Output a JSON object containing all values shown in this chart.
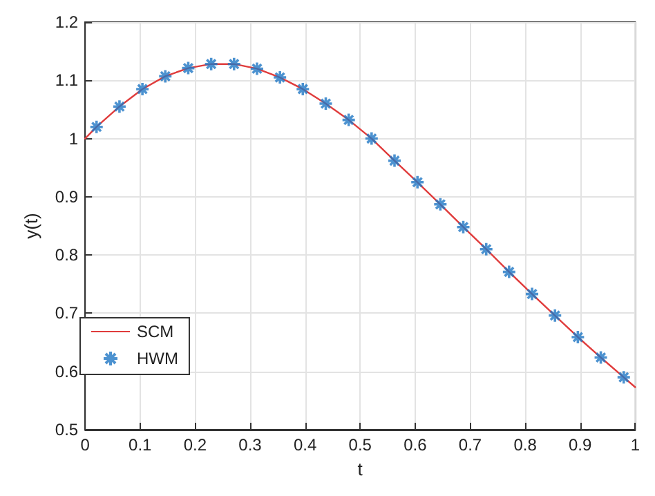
{
  "chart_data": {
    "type": "line",
    "xlabel": "t",
    "ylabel": "y(t)",
    "xlim": [
      0,
      1
    ],
    "xticks": [
      0,
      0.1,
      0.2,
      0.3,
      0.4,
      0.5,
      0.6,
      0.7,
      0.8,
      0.9,
      1
    ],
    "ylim": [
      0.5,
      1.2
    ],
    "yticks": [
      0.5,
      0.6,
      0.7,
      0.8,
      0.9,
      1,
      1.1,
      1.2
    ],
    "grid": true,
    "legend": "bottom left",
    "series": [
      {
        "name": "SCM",
        "color": "#e03c3c",
        "marker": "none",
        "line_style": "solid",
        "x": [
          0,
          0.0208,
          0.0625,
          0.1042,
          0.1458,
          0.1875,
          0.2292,
          0.2708,
          0.3125,
          0.3542,
          0.3958,
          0.4375,
          0.4792,
          0.5208,
          0.5625,
          0.6042,
          0.6458,
          0.6875,
          0.7292,
          0.7708,
          0.8125,
          0.8542,
          0.8958,
          0.9375,
          0.9792,
          1
        ],
        "values": [
          1.0,
          1.02,
          1.055,
          1.085,
          1.107,
          1.121,
          1.128,
          1.128,
          1.12,
          1.105,
          1.085,
          1.06,
          1.032,
          1.0,
          0.962,
          0.925,
          0.887,
          0.848,
          0.81,
          0.771,
          0.733,
          0.696,
          0.659,
          0.624,
          0.59,
          0.573
        ]
      },
      {
        "name": "HWM",
        "type": "scatter",
        "color": "#1f77c4",
        "marker": "cross",
        "x": [
          0.0208,
          0.0625,
          0.1042,
          0.1458,
          0.1875,
          0.2292,
          0.2708,
          0.3125,
          0.3542,
          0.3958,
          0.4375,
          0.4792,
          0.5208,
          0.5625,
          0.6042,
          0.6458,
          0.6875,
          0.7292,
          0.7708,
          0.8125,
          0.8542,
          0.8958,
          0.9375,
          0.9792
        ],
        "values": [
          1.02,
          1.055,
          1.085,
          1.107,
          1.121,
          1.128,
          1.128,
          1.12,
          1.105,
          1.085,
          1.06,
          1.032,
          1.0,
          0.962,
          0.925,
          0.887,
          0.848,
          0.81,
          0.771,
          0.733,
          0.696,
          0.659,
          0.624,
          0.59
        ]
      }
    ]
  }
}
